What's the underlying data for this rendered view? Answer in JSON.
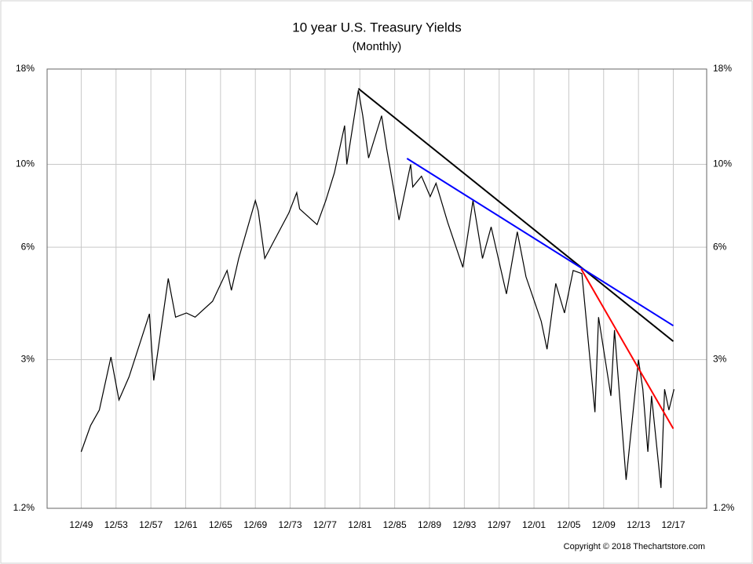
{
  "chart_data": {
    "type": "line",
    "title": "10 year U.S. Treasury Yields",
    "subtitle": "(Monthly)",
    "note": "Copyright © 2018 Thechartstore.com",
    "log_scale": true,
    "grid": true,
    "xlim": [
      "1946-01",
      "2021-10"
    ],
    "ylim": [
      1.2,
      18
    ],
    "yticks": [
      {
        "value": 18,
        "label": "18%"
      },
      {
        "value": 10,
        "label": "10%"
      },
      {
        "value": 6,
        "label": "6%"
      },
      {
        "value": 3,
        "label": "3%"
      },
      {
        "value": 1.2,
        "label": "1.2%"
      }
    ],
    "xticks": [
      {
        "value": "1949-12",
        "label": "12/49"
      },
      {
        "value": "1953-12",
        "label": "12/53"
      },
      {
        "value": "1957-12",
        "label": "12/57"
      },
      {
        "value": "1961-12",
        "label": "12/61"
      },
      {
        "value": "1965-12",
        "label": "12/65"
      },
      {
        "value": "1969-12",
        "label": "12/69"
      },
      {
        "value": "1973-12",
        "label": "12/73"
      },
      {
        "value": "1977-12",
        "label": "12/77"
      },
      {
        "value": "1981-12",
        "label": "12/81"
      },
      {
        "value": "1985-12",
        "label": "12/85"
      },
      {
        "value": "1989-12",
        "label": "12/89"
      },
      {
        "value": "1993-12",
        "label": "12/93"
      },
      {
        "value": "1997-12",
        "label": "12/97"
      },
      {
        "value": "2001-12",
        "label": "12/01"
      },
      {
        "value": "2005-12",
        "label": "12/05"
      },
      {
        "value": "2009-12",
        "label": "12/09"
      },
      {
        "value": "2013-12",
        "label": "12/13"
      },
      {
        "value": "2017-12",
        "label": "12/17"
      }
    ],
    "series": [
      {
        "color": "#000000",
        "x": [
          "1949-12",
          "1951-01",
          "1952-01",
          "1953-05",
          "1954-04",
          "1955-06",
          "1957-10",
          "1958-04",
          "1959-12",
          "1960-10",
          "1962-01",
          "1963-01",
          "1965-01",
          "1966-09",
          "1967-03",
          "1968-01",
          "1969-12",
          "1970-04",
          "1971-01",
          "1972-01",
          "1973-10",
          "1974-09",
          "1975-01",
          "1977-01",
          "1978-01",
          "1979-01",
          "1980-03",
          "1980-06",
          "1981-10",
          "1982-04",
          "1982-12",
          "1984-06",
          "1985-01",
          "1986-06",
          "1987-10",
          "1988-01",
          "1989-01",
          "1990-01",
          "1990-09",
          "1992-01",
          "1993-10",
          "1994-12",
          "1996-01",
          "1997-01",
          "1998-10",
          "2000-01",
          "2001-01",
          "2002-10",
          "2003-06",
          "2004-06",
          "2005-06",
          "2006-06",
          "2007-06",
          "2008-12",
          "2009-05",
          "2010-10",
          "2011-03",
          "2012-07",
          "2013-12",
          "2014-06",
          "2015-01",
          "2015-06",
          "2016-07",
          "2016-12",
          "2017-06",
          "2018-01"
        ],
        "values": [
          1.7,
          2.0,
          2.2,
          3.05,
          2.34,
          2.7,
          3.98,
          2.64,
          4.95,
          3.9,
          4.0,
          3.9,
          4.3,
          5.2,
          4.6,
          5.6,
          8.0,
          7.5,
          5.6,
          6.2,
          7.4,
          8.4,
          7.6,
          6.9,
          8.0,
          9.5,
          12.7,
          10.0,
          15.8,
          13.5,
          10.4,
          13.5,
          11.0,
          7.1,
          10.0,
          8.7,
          9.3,
          8.2,
          8.9,
          7.0,
          5.3,
          8.0,
          5.6,
          6.8,
          4.5,
          6.6,
          5.0,
          3.8,
          3.2,
          4.8,
          4.0,
          5.2,
          5.1,
          2.17,
          3.9,
          2.4,
          3.6,
          1.43,
          3.0,
          2.5,
          1.7,
          2.4,
          1.36,
          2.5,
          2.2,
          2.5
        ]
      },
      {
        "color": "#000000",
        "x": [
          "1981-10",
          "2017-12"
        ],
        "values": [
          15.96,
          3.36
        ]
      },
      {
        "color": "#0000ff",
        "x": [
          "1987-05",
          "2017-12"
        ],
        "values": [
          10.37,
          3.7
        ]
      },
      {
        "color": "#ff0000",
        "x": [
          "2007-05",
          "2017-12"
        ],
        "values": [
          5.25,
          1.96
        ]
      }
    ]
  }
}
